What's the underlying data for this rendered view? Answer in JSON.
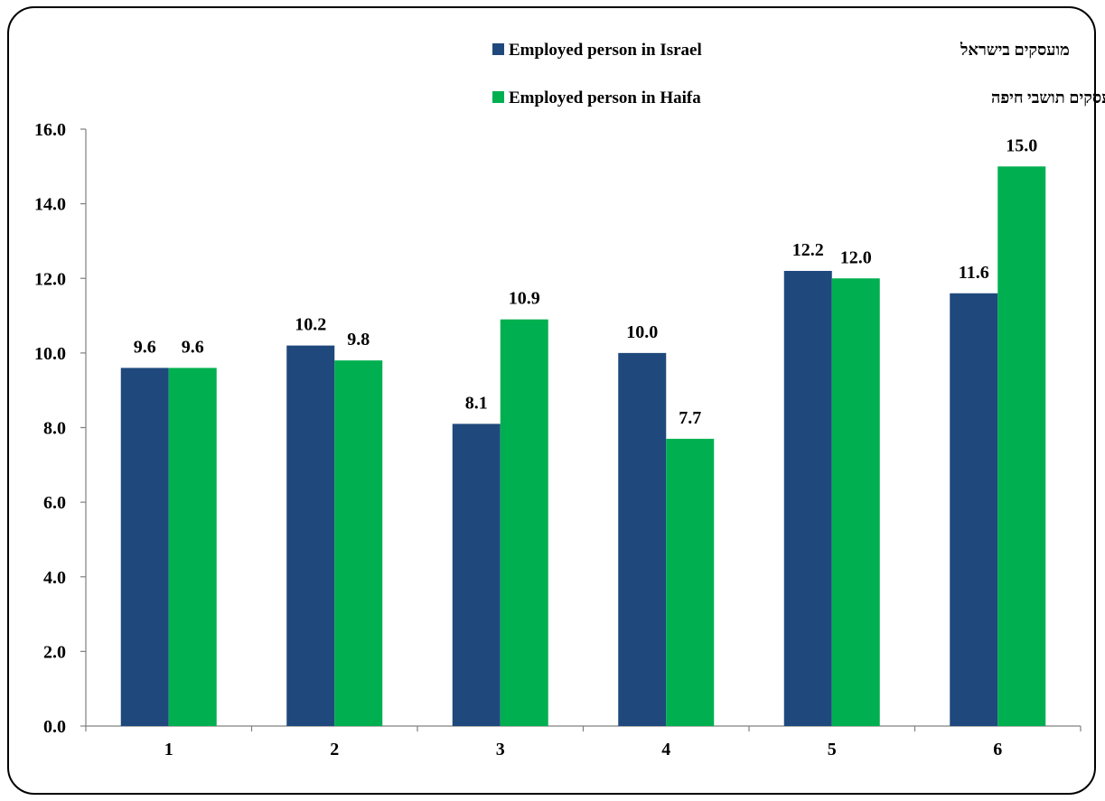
{
  "chart_data": {
    "type": "bar",
    "categories": [
      "1",
      "2",
      "3",
      "4",
      "5",
      "6"
    ],
    "series": [
      {
        "name": "Employed person in Israel",
        "name_he": "מועסקים בישראל",
        "color": "#1F497D",
        "values": [
          9.6,
          10.2,
          8.1,
          10.0,
          12.2,
          11.6
        ]
      },
      {
        "name": "Employed person in Haifa",
        "name_he": "מועסקים תושבי חיפה",
        "color": "#00B050",
        "values": [
          9.6,
          9.8,
          10.9,
          7.7,
          12.0,
          15.0
        ]
      }
    ],
    "ylim": [
      0,
      16
    ],
    "yticks": [
      "0.0",
      "2.0",
      "4.0",
      "6.0",
      "8.0",
      "10.0",
      "12.0",
      "14.0",
      "16.0"
    ],
    "grid": false,
    "legend_position": "top-right"
  }
}
